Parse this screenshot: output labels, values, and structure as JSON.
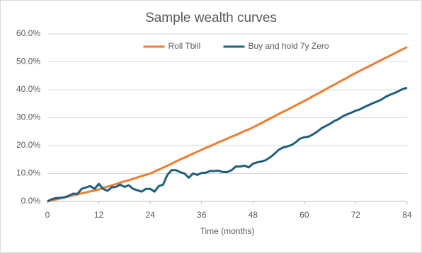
{
  "chart_data": {
    "type": "line",
    "title": "Sample wealth curves",
    "x_label": "Time (months)",
    "x": [
      0,
      1,
      2,
      3,
      4,
      5,
      6,
      7,
      8,
      9,
      10,
      11,
      12,
      13,
      14,
      15,
      16,
      17,
      18,
      19,
      20,
      21,
      22,
      23,
      24,
      25,
      26,
      27,
      28,
      29,
      30,
      31,
      32,
      33,
      34,
      35,
      36,
      37,
      38,
      39,
      40,
      41,
      42,
      43,
      44,
      45,
      46,
      47,
      48,
      49,
      50,
      51,
      52,
      53,
      54,
      55,
      56,
      57,
      58,
      59,
      60,
      61,
      62,
      63,
      64,
      65,
      66,
      67,
      68,
      69,
      70,
      71,
      72,
      73,
      74,
      75,
      76,
      77,
      78,
      79,
      80,
      81,
      82,
      83,
      84
    ],
    "series": [
      {
        "name": "Roll Tbill",
        "color": "#ed7d31",
        "values": [
          0,
          0.4,
          0.7,
          1.1,
          1.4,
          1.8,
          2.2,
          2.5,
          2.9,
          3.2,
          3.6,
          3.9,
          4.3,
          4.8,
          5.3,
          5.7,
          6.2,
          6.7,
          7.2,
          7.6,
          8.1,
          8.6,
          9.1,
          9.5,
          10.0,
          10.7,
          11.4,
          12.1,
          12.8,
          13.5,
          14.3,
          15.0,
          15.7,
          16.4,
          17.1,
          17.8,
          18.5,
          19.2,
          19.8,
          20.5,
          21.2,
          21.8,
          22.5,
          23.2,
          23.8,
          24.5,
          25.2,
          25.8,
          26.5,
          27.3,
          28.1,
          28.9,
          29.7,
          30.5,
          31.3,
          32.1,
          32.8,
          33.6,
          34.4,
          35.2,
          36.0,
          36.8,
          37.7,
          38.5,
          39.3,
          40.2,
          41.0,
          41.8,
          42.7,
          43.5,
          44.3,
          45.2,
          46.0,
          46.8,
          47.6,
          48.3,
          49.1,
          49.9,
          50.7,
          51.4,
          52.2,
          53.0,
          53.8,
          54.5,
          55.3
        ]
      },
      {
        "name": "Buy and hold 7y Zero",
        "color": "#1e5f80",
        "values": [
          0,
          0.8,
          1.2,
          1.3,
          1.5,
          2.0,
          2.8,
          2.7,
          4.5,
          5.0,
          5.5,
          4.5,
          6.3,
          4.5,
          3.8,
          5.0,
          5.2,
          6.0,
          5.2,
          5.8,
          4.5,
          4.0,
          3.5,
          4.5,
          4.5,
          3.5,
          5.5,
          6.0,
          9.5,
          11.2,
          11.2,
          10.5,
          10.0,
          8.5,
          10.0,
          9.5,
          10.2,
          10.3,
          10.9,
          10.9,
          11.0,
          10.5,
          10.5,
          11.2,
          12.5,
          12.5,
          12.8,
          12.2,
          13.5,
          14.0,
          14.3,
          14.8,
          15.8,
          17.0,
          18.5,
          19.3,
          19.7,
          20.2,
          21.2,
          22.5,
          23.0,
          23.2,
          24.0,
          25.0,
          26.2,
          27.0,
          27.8,
          28.8,
          29.5,
          30.5,
          31.2,
          31.8,
          32.5,
          33.0,
          33.8,
          34.5,
          35.2,
          35.8,
          36.5,
          37.5,
          38.2,
          38.8,
          39.5,
          40.3,
          40.7
        ]
      }
    ],
    "xlim": [
      0,
      84
    ],
    "xticks": [
      0,
      12,
      24,
      36,
      48,
      60,
      72,
      84
    ],
    "ylim": [
      0,
      60
    ],
    "yticks": [
      {
        "value": 0,
        "label": "0.0%"
      },
      {
        "value": 10,
        "label": "10.0%"
      },
      {
        "value": 20,
        "label": "20.0%"
      },
      {
        "value": 30,
        "label": "30.0%"
      },
      {
        "value": 40,
        "label": "40.0%"
      },
      {
        "value": 50,
        "label": "50.0%"
      },
      {
        "value": 60,
        "label": "60.0%"
      }
    ],
    "grid": true,
    "legend": "top"
  }
}
